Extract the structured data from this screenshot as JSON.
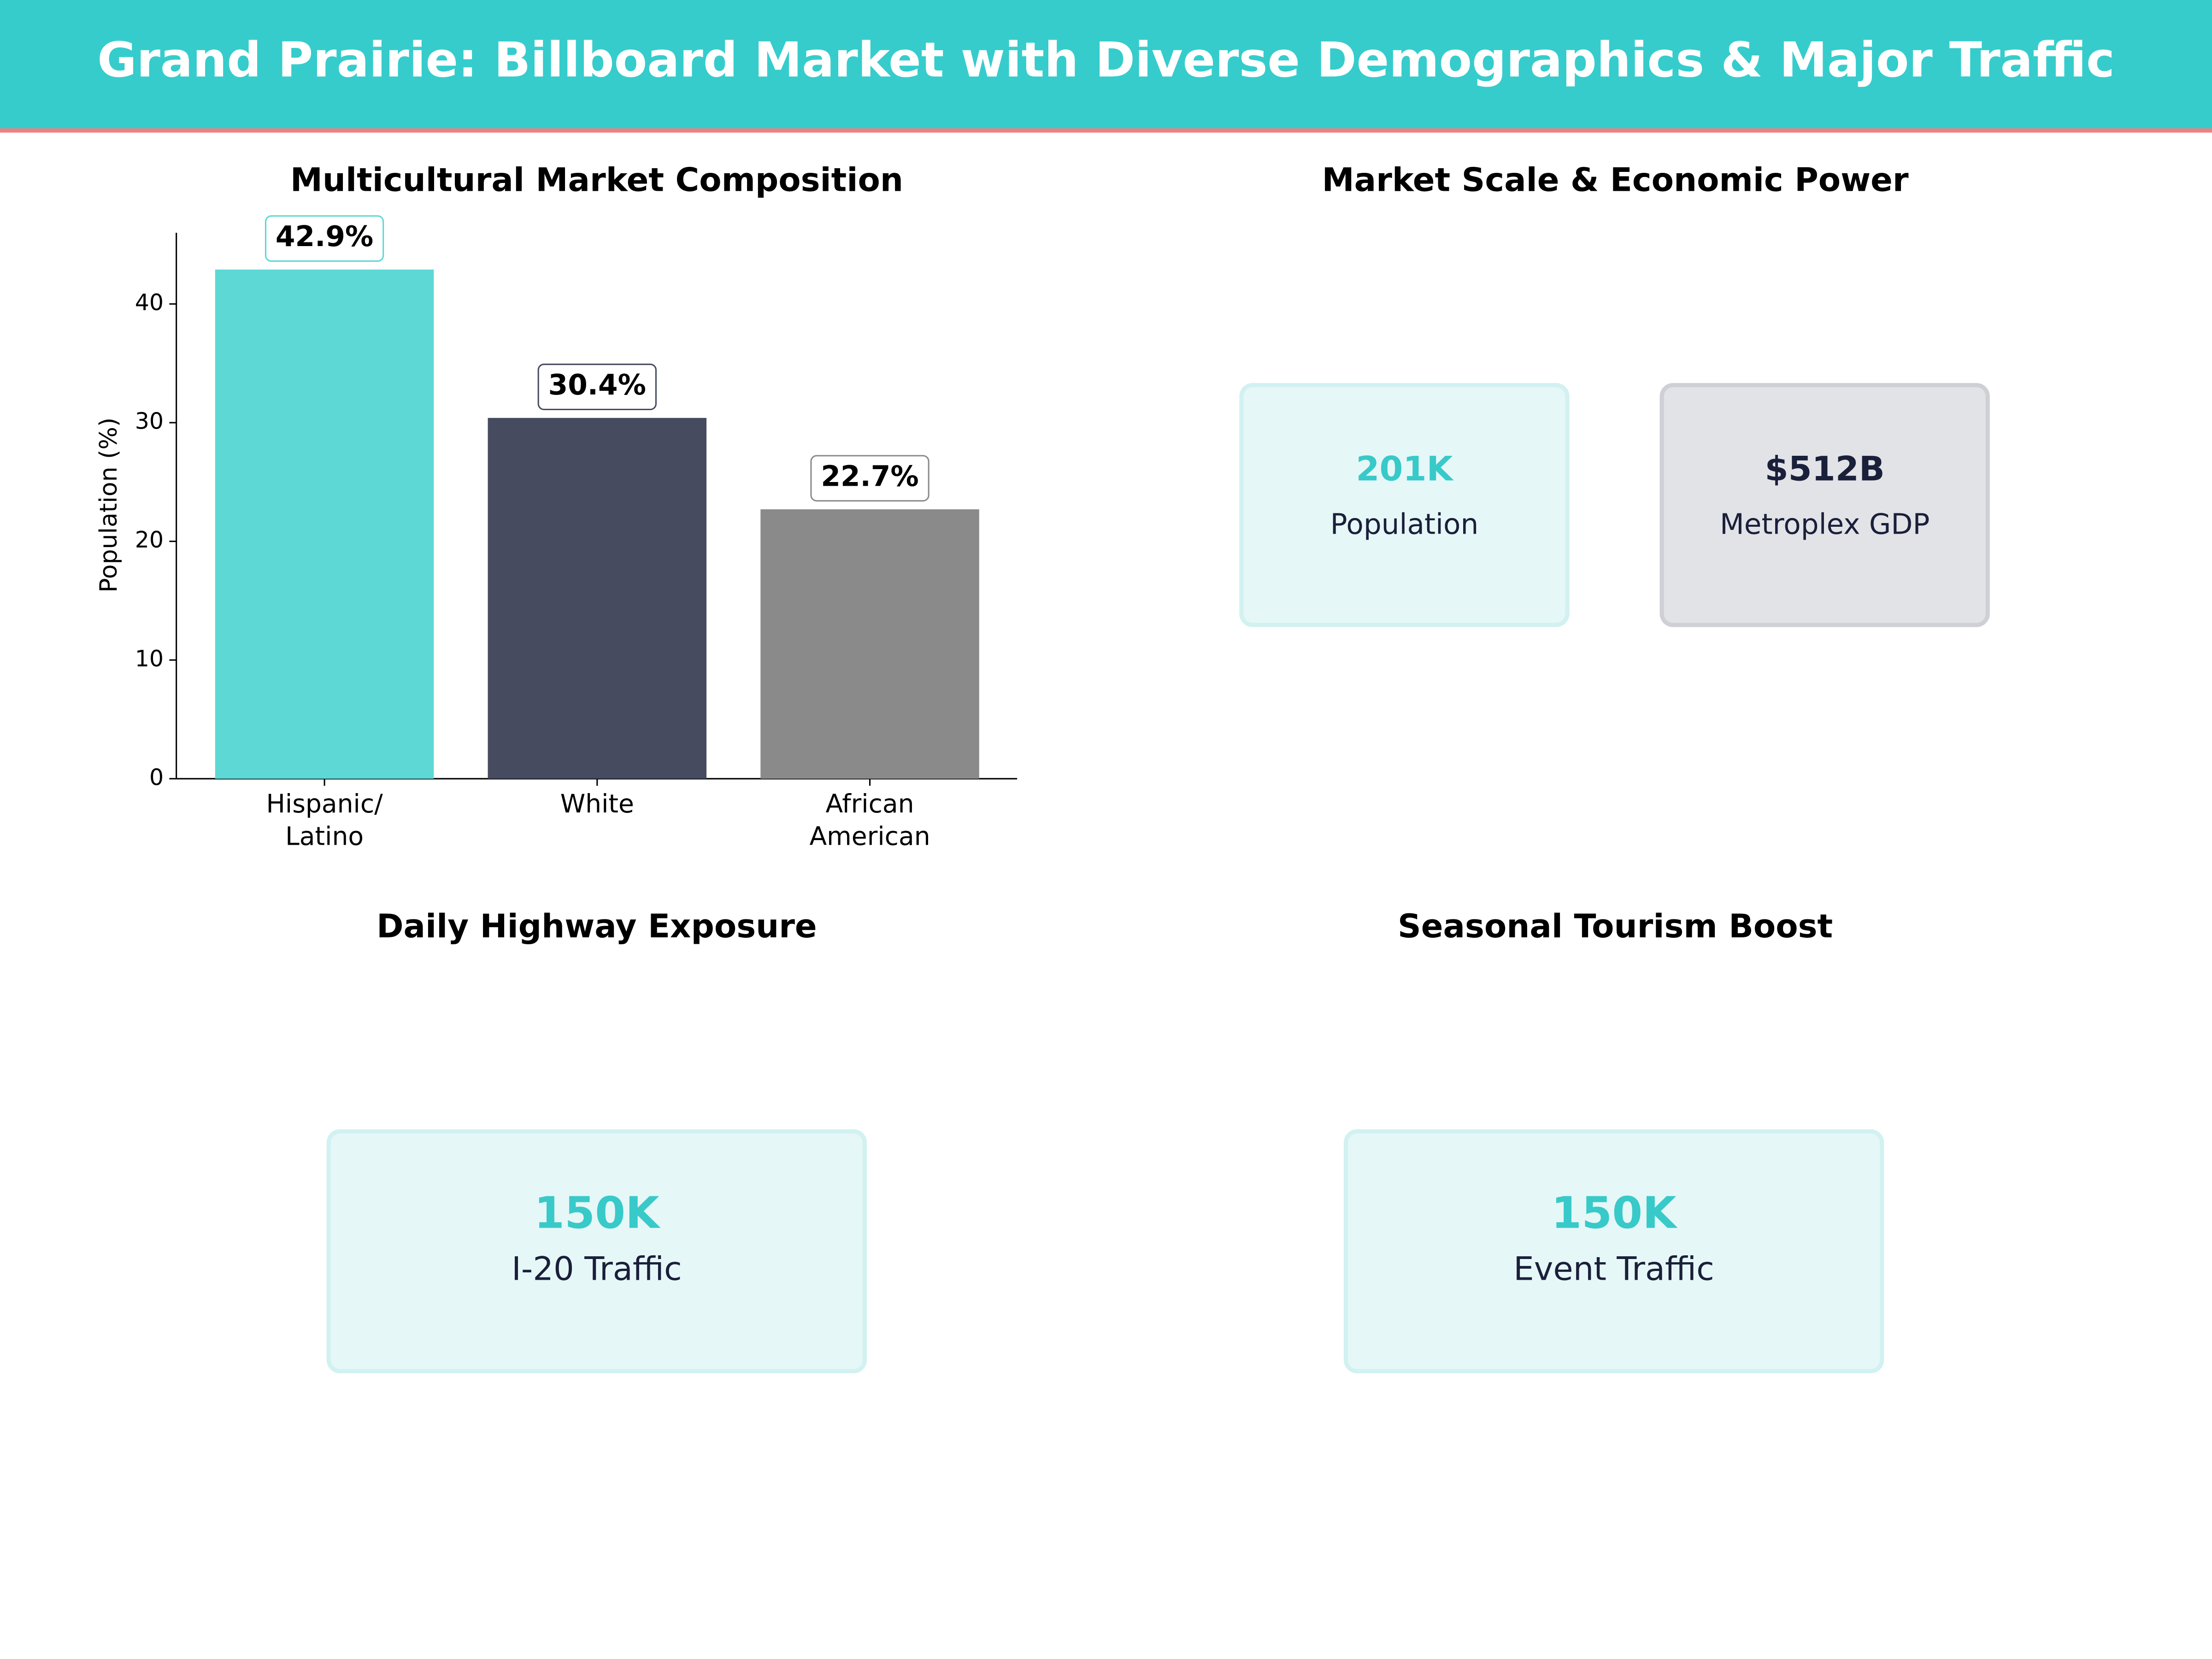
{
  "title": "Grand Prairie: Billboard Market with Diverse Demographics & Major Traffic",
  "chart_data": {
    "type": "bar",
    "title": "Multicultural Market Composition",
    "ylabel": "Population (%)",
    "categories": [
      "Hispanic/\nLatino",
      "White",
      "African\nAmerican"
    ],
    "values": [
      42.9,
      30.4,
      22.7
    ],
    "value_labels": [
      "42.9%",
      "30.4%",
      "22.7%"
    ],
    "colors": [
      "#5dd8d4",
      "#464b60",
      "#8a8a8a"
    ],
    "ylim": [
      0,
      46
    ],
    "yticks": [
      0,
      10,
      20,
      30,
      40
    ]
  },
  "kpi_panels": [
    {
      "title": "Market Scale & Economic Power",
      "cards": [
        {
          "value": "201K",
          "label": "Population"
        },
        {
          "value": "$512B",
          "label": "Metroplex GDP"
        }
      ]
    },
    {
      "title": "Daily Highway Exposure",
      "cards": [
        {
          "value": "150K",
          "label": "I-20 Traffic"
        }
      ]
    },
    {
      "title": "Seasonal Tourism Boost",
      "cards": [
        {
          "value": "150K",
          "label": "Event Traffic"
        }
      ]
    }
  ]
}
